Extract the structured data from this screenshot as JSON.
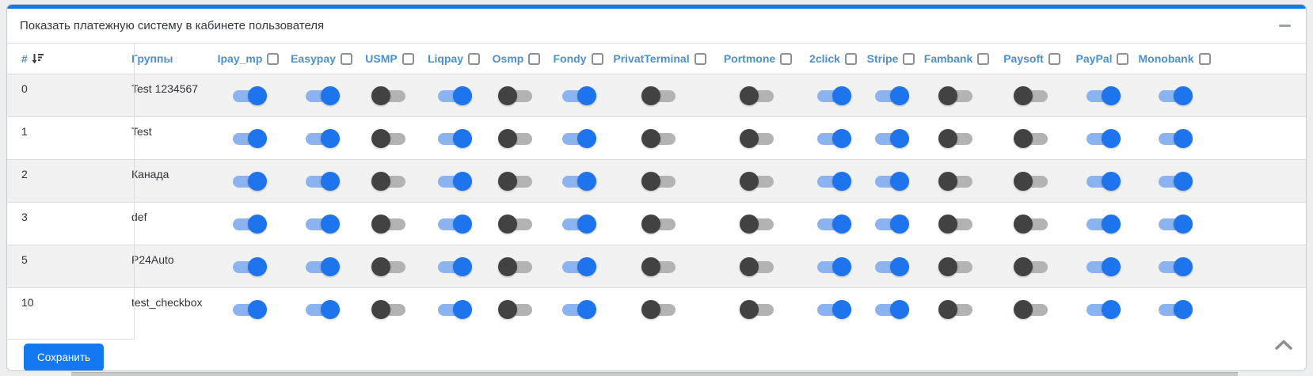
{
  "panel": {
    "title": "Показать платежную систему в кабинете пользователя",
    "minimize_icon": "minus-icon"
  },
  "table": {
    "row_number_header": "#",
    "sort_icon": "sort-amount-down-icon",
    "group_header": "Группы",
    "payment_columns": [
      {
        "label": "Ipay_mp",
        "checked": false
      },
      {
        "label": "Easypay",
        "checked": false
      },
      {
        "label": "USMP",
        "checked": false
      },
      {
        "label": "Liqpay",
        "checked": false
      },
      {
        "label": "Osmp",
        "checked": false
      },
      {
        "label": "Fondy",
        "checked": false
      },
      {
        "label": "PrivatTerminal",
        "checked": false
      },
      {
        "label": "Portmone",
        "checked": false
      },
      {
        "label": "2click",
        "checked": false
      },
      {
        "label": "Stripe",
        "checked": false
      },
      {
        "label": "Fambank",
        "checked": false
      },
      {
        "label": "Paysoft",
        "checked": false
      },
      {
        "label": "PayPal",
        "checked": false
      },
      {
        "label": "Monobank",
        "checked": false
      }
    ],
    "rows": [
      {
        "num": "0",
        "group": "Test 1234567",
        "toggles": [
          true,
          true,
          false,
          true,
          false,
          true,
          false,
          false,
          true,
          true,
          false,
          false,
          true,
          true
        ]
      },
      {
        "num": "1",
        "group": "Test",
        "toggles": [
          true,
          true,
          false,
          true,
          false,
          true,
          false,
          false,
          true,
          true,
          false,
          false,
          true,
          true
        ]
      },
      {
        "num": "2",
        "group": "Канада",
        "toggles": [
          true,
          true,
          false,
          true,
          false,
          true,
          false,
          false,
          true,
          true,
          false,
          false,
          true,
          true
        ]
      },
      {
        "num": "3",
        "group": "def",
        "toggles": [
          true,
          true,
          false,
          true,
          false,
          true,
          false,
          false,
          true,
          true,
          false,
          false,
          true,
          true
        ]
      },
      {
        "num": "5",
        "group": "P24Auto",
        "toggles": [
          true,
          true,
          false,
          true,
          false,
          true,
          false,
          false,
          true,
          true,
          false,
          false,
          true,
          true
        ]
      },
      {
        "num": "10",
        "group": "test_checkbox",
        "toggles": [
          true,
          true,
          false,
          true,
          false,
          true,
          false,
          false,
          true,
          true,
          false,
          false,
          true,
          true
        ]
      }
    ]
  },
  "footer": {
    "save_label": "Сохранить",
    "scroll_icon": "chevron-up-icon"
  },
  "colors": {
    "accent": "#1478f0",
    "header_text": "#4a90d2",
    "toggle_on": "#1d74ec",
    "toggle_on_track": "#8ab3f0",
    "toggle_off_thumb": "#424242",
    "toggle_off_track": "#b3b3b3",
    "save_button": "#1478f0",
    "stripe": "#f1f1f2"
  }
}
